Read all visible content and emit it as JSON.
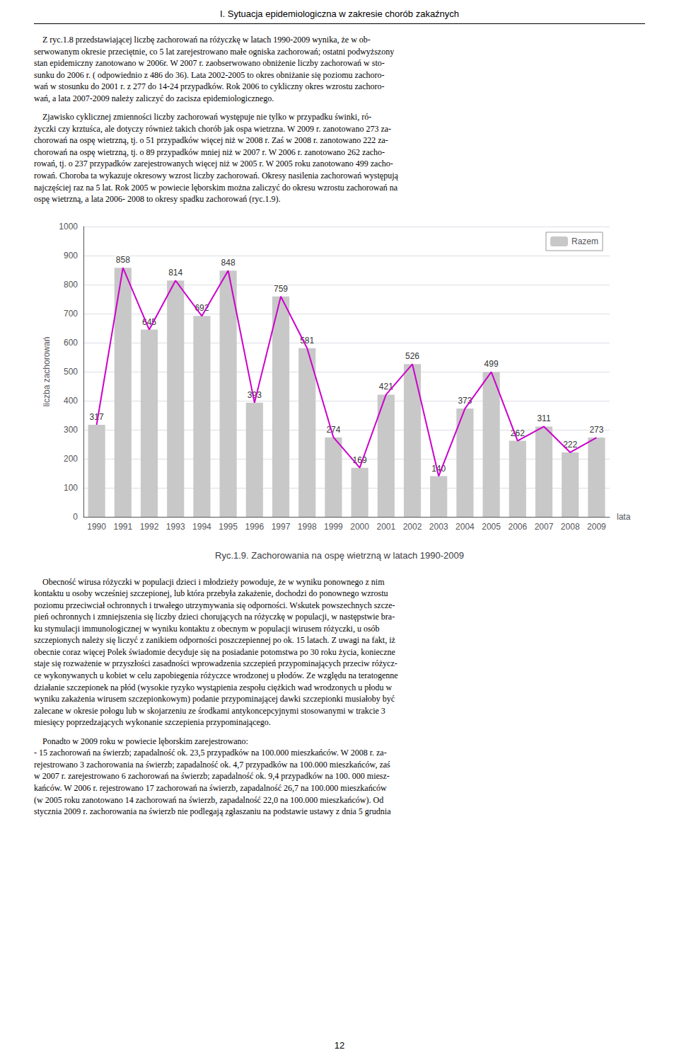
{
  "chart_data": {
    "type": "bar",
    "title": "Ryc.1.9. Zachorowania na ospę wietrzną w latach 1990-2009",
    "xlabel": "lata",
    "ylabel": "liczba zachorowań",
    "categories": [
      "1990",
      "1991",
      "1992",
      "1993",
      "1994",
      "1995",
      "1996",
      "1997",
      "1998",
      "1999",
      "2000",
      "2001",
      "2002",
      "2003",
      "2004",
      "2005",
      "2006",
      "2007",
      "2008",
      "2009"
    ],
    "series": [
      {
        "name": "Razem",
        "type": "bar",
        "color": "#c8c8c8",
        "values": [
          317,
          858,
          645,
          814,
          692,
          848,
          393,
          759,
          581,
          274,
          169,
          421,
          526,
          140,
          373,
          499,
          262,
          311,
          222,
          273
        ]
      },
      {
        "type": "line",
        "color": "#cc00cc",
        "values": [
          317,
          858,
          645,
          814,
          692,
          848,
          393,
          759,
          581,
          274,
          169,
          421,
          526,
          140,
          373,
          499,
          262,
          311,
          222,
          273
        ]
      }
    ],
    "ylim": [
      0,
      1000
    ],
    "yticks": [
      0,
      100,
      200,
      300,
      400,
      500,
      600,
      700,
      800,
      900,
      1000
    ],
    "grid": true,
    "legend": "top-right",
    "data_labels": true,
    "annotations": [
      "I. Sytuacja epidemiologiczna w zakresie chorób zakaźnych",
      "    Z ryc.1.8 przedstawiającej liczbę zachorowań na różyczkę w latach 1990-2009 wynika, że w ob-\nserwowanym okresie przeciętnie, co 5 lat zarejestrowano małe ogniska zachorowań; ostatni podwyższony\nstan epidemiczny zanotowano w 2006r. W 2007 r. zaobserwowano obniżenie liczby zachorowań w sto-\nsunku do 2006 r. ( odpowiednio z 486 do 36). Lata 2002-2005 to okres obniżanie się poziomu zachoro-\nwań w stosunku do 2001 r. z 277 do 14-24 przypadków. Rok 2006 to cykliczny okres wzrostu zachoro-\nwań, a lata 2007-2009 należy zaliczyć do zacisza epidemiologicznego.",
      "    Zjawisko cyklicznej zmienności liczby zachorowań występuje nie tylko w przypadku świnki, ró-\nżyczki czy krztuśca, ale dotyczy również takich chorób jak ospa wietrzna. W 2009 r. zanotowano 273 za-\nchorowań na ospę wietrzną, tj. o 51 przypadków więcej niż w 2008 r. Zaś w 2008 r. zanotowano 222 za-\nchorowań na ospę wietrzną, tj. o 89 przypadków mniej niż w 2007 r. W 2006 r. zanotowano 262 zacho-\nrowań, tj. o 237 przypadków zarejestrowanych więcej niż w 2005 r. W 2005 roku zanotowano 499 zacho-\nrowań. Choroba ta wykazuje okresowy wzrost liczby zachorowań. Okresy nasilenia zachorowań występują\nnajczęściej raz na 5 lat. Rok 2005 w powiecie lęborskim można zaliczyć do okresu wzrostu zachorowań na\nospę wietrzną, a lata 2006- 2008 to okresy spadku zachorowań (ryc.1.9).",
      "    Obecność wirusa różyczki w populacji dzieci i młodzieży powoduje, że w wyniku ponownego z nim\nkontaktu u osoby wcześniej szczepionej, lub która przebyła zakażenie, dochodzi do ponownego wzrostu\npoziomu przeciwciał ochronnych i trwałego utrzymywania się odporności. Wskutek powszechnych szcze-\npień ochronnych i zmniejszenia się liczby dzieci chorujących na różyczkę w populacji, w następstwie bra-\nku stymulacji immunologicznej w wyniku kontaktu z obecnym w populacji wirusem różyczki, u osób\nszczepionych należy się liczyć z zanikiem odporności poszczepiennej po ok. 15 latach. Z uwagi na fakt, iż\nobecnie coraz więcej Polek świadomie decyduje się na posiadanie potomstwa po 30 roku życia, konieczne\nstaje się rozważenie w przyszłości zasadności wprowadzenia szczepień przypominających przeciw różycz-\nce wykonywanych u kobiet w celu zapobiegenia różyczce wrodzonej u płodów. Ze względu na teratogenne\ndziałanie szczepionek na płód (wysokie ryzyko wystąpienia zespołu ciężkich wad wrodzonych u płodu w\nwyniku zakażenia wirusem szczepionkowym) podanie przypominającej dawki szczepionki musiałoby być\nzalecane w okresie połogu lub w skojarzeniu ze środkami antykoncepcyjnymi stosowanymi w trakcie 3\nmiesięcy poprzedzających wykonanie szczepienia przypominającego.",
      "    Ponadto w 2009 roku w powiecie lęborskim zarejestrowano:\n- 15 zachorowań na świerzb; zapadalność ok. 23,5 przypadków na 100.000 mieszkańców. W 2008 r. za-\nrejestrowano 3 zachorowania na świerzb; zapadalność ok. 4,7 przypadków na 100.000 mieszkańców, zaś\nw 2007 r. zarejestrowano 6 zachorowań na świerzb; zapadalność ok. 9,4 przypadków na 100. 000 miesz-\nkańców. W 2006 r. rejestrowano 17 zachorowań na świerzb, zapadalność 26,7 na 100.000 mieszkańców\n(w 2005 roku zanotowano 14 zachorowań na świerzb, zapadalność 22,0 na 100.000 mieszkańców). Od\nstycznia 2009 r. zachorowania na świerzb nie podlegają zgłaszaniu na podstawie ustawy z dnia 5 grudnia",
      "12"
    ]
  }
}
